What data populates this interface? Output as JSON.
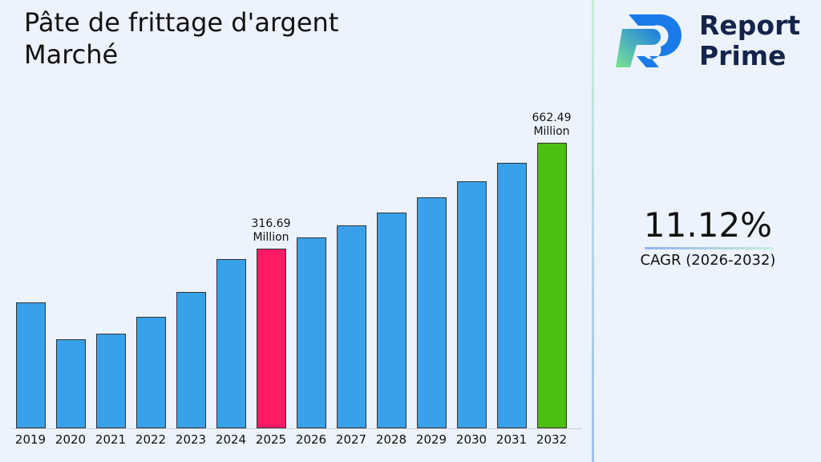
{
  "chart_data": {
    "type": "bar",
    "title": "Pâte de frittage d'argent Marché",
    "categories": [
      "2019",
      "2020",
      "2021",
      "2022",
      "2023",
      "2024",
      "2025",
      "2026",
      "2027",
      "2028",
      "2029",
      "2030",
      "2031",
      "2032"
    ],
    "values": [
      140,
      20,
      40,
      95,
      175,
      283,
      316.69,
      351.9,
      391.0,
      434.5,
      482.8,
      536.5,
      596.2,
      662.49
    ],
    "value_labels": [
      null,
      null,
      null,
      null,
      null,
      null,
      "316.69 Million",
      null,
      null,
      null,
      null,
      null,
      null,
      "662.49 Million"
    ],
    "colors": [
      "#38a1e9",
      "#38a1e9",
      "#38a1e9",
      "#38a1e9",
      "#38a1e9",
      "#38a1e9",
      "#ff1a66",
      "#38a1e9",
      "#38a1e9",
      "#38a1e9",
      "#38a1e9",
      "#38a1e9",
      "#38a1e9",
      "#4cbf12"
    ],
    "ylim": [
      -270,
      680
    ]
  },
  "logo": {
    "line1": "Report",
    "line2": "Prime"
  },
  "cagr": {
    "value": "11.12%",
    "label": "CAGR (2026-2032)"
  }
}
